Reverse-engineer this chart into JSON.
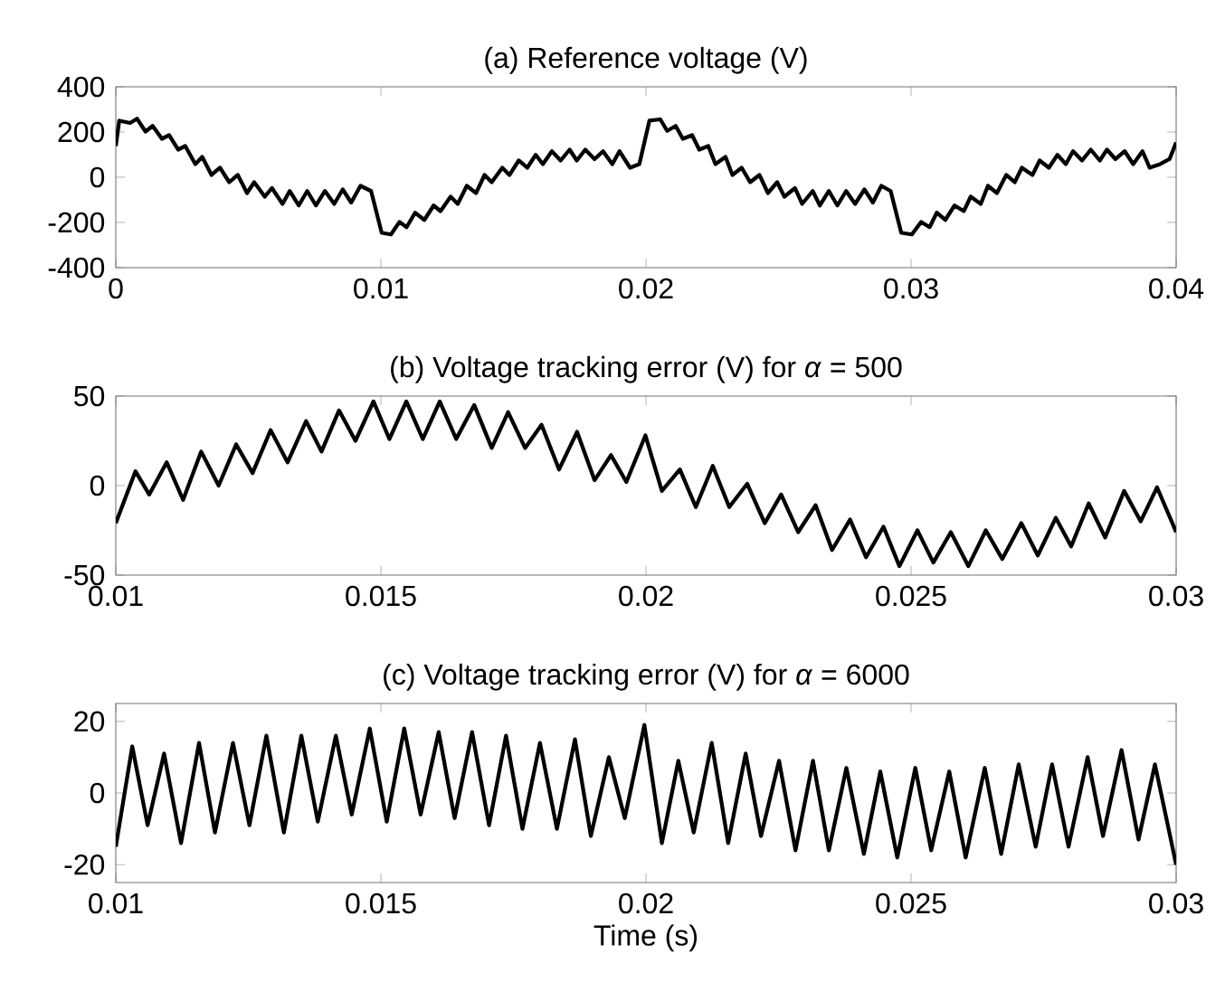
{
  "chart_data": [
    {
      "type": "line",
      "title": "(a) Reference voltage (V)",
      "color": "#000000",
      "xlim": [
        0,
        0.04
      ],
      "ylim": [
        -400,
        400
      ],
      "xticks": [
        0,
        0.01,
        0.02,
        0.03,
        0.04
      ],
      "yticks": [
        -400,
        -200,
        0,
        200,
        400
      ],
      "x": [
        0,
        0.00013,
        0.00054,
        0.0008,
        0.00112,
        0.00139,
        0.00174,
        0.00201,
        0.00235,
        0.00262,
        0.003,
        0.00326,
        0.00361,
        0.00393,
        0.00428,
        0.0046,
        0.00495,
        0.00522,
        0.00562,
        0.00589,
        0.00629,
        0.00656,
        0.0069,
        0.00722,
        0.00755,
        0.00789,
        0.00824,
        0.00856,
        0.00888,
        0.00923,
        0.00963,
        0.01003,
        0.01038,
        0.0107,
        0.01097,
        0.01129,
        0.01164,
        0.01199,
        0.01225,
        0.01263,
        0.0129,
        0.01324,
        0.01359,
        0.01391,
        0.01418,
        0.01458,
        0.01485,
        0.0152,
        0.01552,
        0.01584,
        0.01611,
        0.01645,
        0.01678,
        0.01712,
        0.01739,
        0.01771,
        0.01806,
        0.01838,
        0.01873,
        0.019,
        0.0194,
        0.01975,
        0.02013,
        0.02054,
        0.0208,
        0.02112,
        0.02139,
        0.02174,
        0.02201,
        0.02235,
        0.02262,
        0.023,
        0.02326,
        0.02361,
        0.02393,
        0.02428,
        0.0246,
        0.02495,
        0.02522,
        0.02562,
        0.02589,
        0.02629,
        0.02656,
        0.0269,
        0.02722,
        0.02755,
        0.02789,
        0.02824,
        0.02856,
        0.02888,
        0.02923,
        0.02963,
        0.03003,
        0.03038,
        0.0307,
        0.03097,
        0.03129,
        0.03164,
        0.03199,
        0.03225,
        0.03263,
        0.0329,
        0.03324,
        0.03359,
        0.03391,
        0.03418,
        0.03458,
        0.03485,
        0.0352,
        0.03552,
        0.03584,
        0.03611,
        0.03645,
        0.03678,
        0.03712,
        0.03739,
        0.03771,
        0.03806,
        0.03838,
        0.03873,
        0.039,
        0.0394,
        0.03975,
        0.04
      ],
      "values": [
        138,
        250,
        240,
        259,
        202,
        227,
        170,
        186,
        122,
        138,
        58,
        90,
        10,
        42,
        -22,
        10,
        -70,
        -22,
        -86,
        -48,
        -118,
        -61,
        -125,
        -61,
        -125,
        -61,
        -118,
        -54,
        -112,
        -38,
        -61,
        -246,
        -253,
        -198,
        -221,
        -157,
        -189,
        -125,
        -150,
        -86,
        -118,
        -38,
        -70,
        10,
        -22,
        42,
        10,
        74,
        42,
        99,
        58,
        115,
        74,
        122,
        74,
        122,
        80,
        115,
        58,
        115,
        42,
        58,
        250,
        256,
        205,
        227,
        170,
        186,
        122,
        138,
        58,
        90,
        10,
        42,
        -22,
        10,
        -70,
        -22,
        -86,
        -48,
        -118,
        -61,
        -125,
        -61,
        -125,
        -61,
        -118,
        -54,
        -112,
        -38,
        -61,
        -246,
        -253,
        -198,
        -221,
        -157,
        -189,
        -125,
        -150,
        -86,
        -118,
        -38,
        -70,
        10,
        -22,
        42,
        10,
        74,
        42,
        99,
        58,
        115,
        74,
        122,
        74,
        122,
        80,
        115,
        58,
        115,
        42,
        58,
        80,
        154
      ]
    },
    {
      "type": "line",
      "title": "(b) Voltage tracking error (V) for *α* = 500",
      "color": "#000000",
      "xlim": [
        0.01,
        0.03
      ],
      "ylim": [
        -50,
        50
      ],
      "xticks": [
        0.01,
        0.015,
        0.02,
        0.025,
        0.03
      ],
      "yticks": [
        -50,
        0,
        50
      ],
      "x": [
        0.01,
        0.01037,
        0.01063,
        0.01096,
        0.01127,
        0.01161,
        0.01194,
        0.01227,
        0.01258,
        0.01292,
        0.01324,
        0.01359,
        0.01388,
        0.01421,
        0.01452,
        0.01486,
        0.01516,
        0.01548,
        0.01579,
        0.01611,
        0.01642,
        0.01676,
        0.01709,
        0.0174,
        0.01772,
        0.01803,
        0.01836,
        0.0187,
        0.01903,
        0.01934,
        0.01963,
        0.01999,
        0.0203,
        0.02064,
        0.02094,
        0.02126,
        0.02157,
        0.02191,
        0.02224,
        0.02255,
        0.02287,
        0.0232,
        0.02351,
        0.02385,
        0.02415,
        0.02448,
        0.02478,
        0.02512,
        0.02542,
        0.02575,
        0.02608,
        0.02641,
        0.02672,
        0.02708,
        0.02739,
        0.02773,
        0.02802,
        0.02835,
        0.02866,
        0.02902,
        0.02933,
        0.02964,
        0.03
      ],
      "values": [
        -21,
        8,
        -5,
        13,
        -8,
        19,
        0,
        23,
        7,
        31,
        13,
        36,
        19,
        42,
        25,
        47,
        26,
        47,
        26,
        47,
        26,
        45,
        21,
        41,
        21,
        34,
        9,
        30,
        3,
        17,
        2,
        28,
        -3,
        9,
        -12,
        11,
        -12,
        1,
        -21,
        -5,
        -26,
        -11,
        -36,
        -19,
        -40,
        -23,
        -45,
        -25,
        -43,
        -26,
        -45,
        -25,
        -41,
        -21,
        -39,
        -18,
        -34,
        -10,
        -29,
        -3,
        -20,
        -1,
        -26
      ]
    },
    {
      "type": "line",
      "title": "(c) Voltage tracking error (V) for *α* = 6000",
      "xlabel": "Time (s)",
      "color": "#000000",
      "xlim": [
        0.01,
        0.03
      ],
      "ylim": [
        -25,
        25
      ],
      "xticks": [
        0.01,
        0.015,
        0.02,
        0.025,
        0.03
      ],
      "yticks": [
        -20,
        0,
        20
      ],
      "x": [
        0.01,
        0.01031,
        0.0106,
        0.01091,
        0.01123,
        0.01157,
        0.01187,
        0.01221,
        0.01252,
        0.01284,
        0.01317,
        0.0135,
        0.01381,
        0.01415,
        0.01445,
        0.01479,
        0.01511,
        0.01544,
        0.01575,
        0.01609,
        0.01639,
        0.01672,
        0.01704,
        0.01736,
        0.01767,
        0.018,
        0.01832,
        0.01866,
        0.01896,
        0.0193,
        0.0196,
        0.01997,
        0.0203,
        0.02061,
        0.0209,
        0.02124,
        0.02155,
        0.02188,
        0.02217,
        0.02251,
        0.02282,
        0.02315,
        0.02345,
        0.02378,
        0.02411,
        0.02442,
        0.02474,
        0.02508,
        0.02538,
        0.02572,
        0.02603,
        0.02639,
        0.0267,
        0.02703,
        0.02735,
        0.02766,
        0.02797,
        0.02833,
        0.02862,
        0.02897,
        0.02929,
        0.0296,
        0.03
      ],
      "values": [
        -15,
        13,
        -9,
        11,
        -14,
        14,
        -11,
        14,
        -9,
        16,
        -11,
        16,
        -8,
        16,
        -6,
        18,
        -8,
        18,
        -6,
        17,
        -7,
        17,
        -9,
        16,
        -10,
        14,
        -10,
        15,
        -12,
        10,
        -7,
        19,
        -14,
        9,
        -11,
        14,
        -14,
        11,
        -12,
        9,
        -16,
        9,
        -16,
        7,
        -17,
        6,
        -18,
        7,
        -16,
        6,
        -18,
        7,
        -17,
        8,
        -15,
        8,
        -15,
        10,
        -12,
        12,
        -13,
        8,
        -20
      ]
    }
  ]
}
